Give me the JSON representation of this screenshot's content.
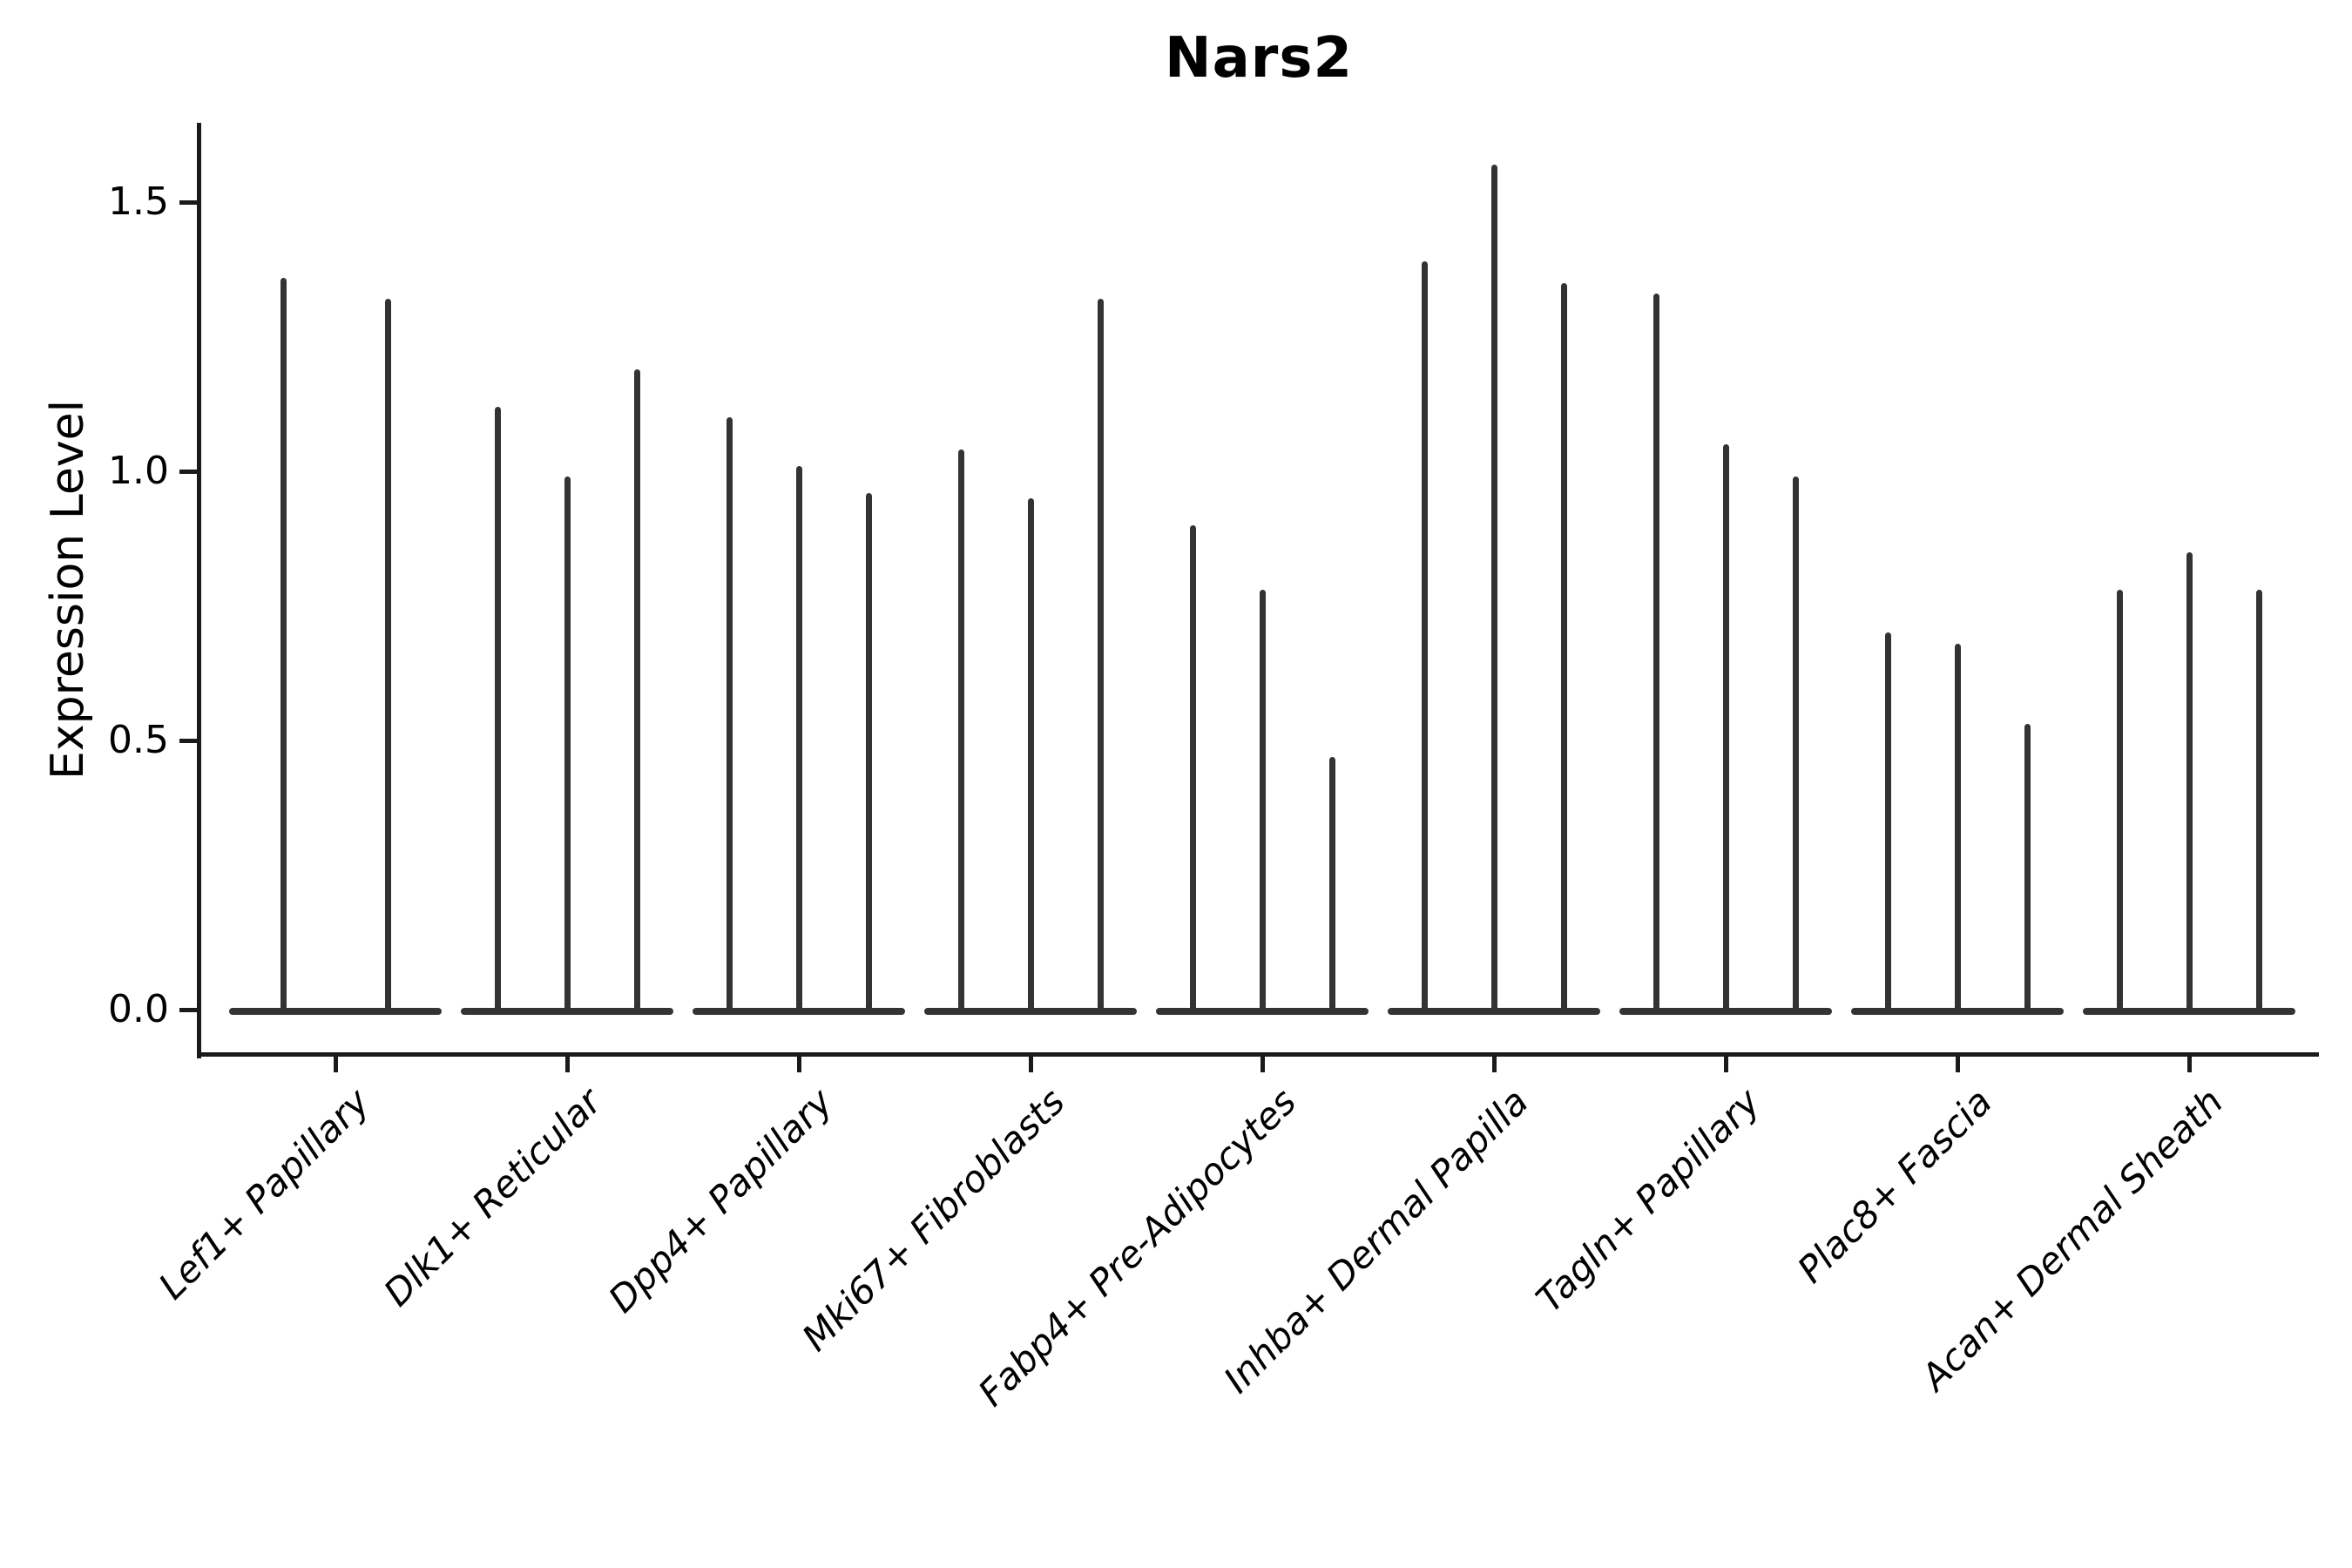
{
  "title": "Nars2",
  "axes": {
    "ylabel": "Expression Level",
    "ytick_labels": [
      "0.0",
      "0.5",
      "1.0",
      "1.5"
    ]
  },
  "chart_data": {
    "type": "violin",
    "title": "Nars2",
    "xlabel": "",
    "ylabel": "Expression Level",
    "ylim": [
      0,
      1.65
    ],
    "ytick_values": [
      0.0,
      0.5,
      1.0,
      1.5
    ],
    "grid": false,
    "legend": false,
    "orientation": "vertical",
    "violin_color": "#333333",
    "axis_color": "#1a1a1a",
    "description": "Thin violin plots of Nars2 expression; each group shows 2-3 narrow violins rising from a flat base at 0, tip value = max expression",
    "categories": [
      "Lef1+ Papillary",
      "Dlk1+ Reticular",
      "Dpp4+ Papillary",
      "Mki67+ Fibroblasts",
      "Fabp4+ Pre-Adipocytes",
      "Inhba+ Dermal Papilla",
      "Tagln+ Papillary",
      "Plac8+ Fascia",
      "Acan+ Dermal Sheath"
    ],
    "groups": [
      {
        "label": "Lef1+ Papillary",
        "violin_max_values": [
          1.36,
          1.32
        ]
      },
      {
        "label": "Dlk1+ Reticular",
        "violin_max_values": [
          1.12,
          0.99,
          1.19
        ]
      },
      {
        "label": "Dpp4+ Papillary",
        "violin_max_values": [
          1.1,
          1.01,
          0.96
        ]
      },
      {
        "label": "Mki67+ Fibroblasts",
        "violin_max_values": [
          1.04,
          0.95,
          1.32
        ]
      },
      {
        "label": "Fabp4+ Pre-Adipocytes",
        "violin_max_values": [
          0.9,
          0.78,
          0.47
        ]
      },
      {
        "label": "Inhba+ Dermal Papilla",
        "violin_max_values": [
          1.39,
          1.57,
          1.35
        ]
      },
      {
        "label": "Tagln+ Papillary",
        "violin_max_values": [
          1.33,
          1.05,
          0.99
        ]
      },
      {
        "label": "Plac8+ Fascia",
        "violin_max_values": [
          0.7,
          0.68,
          0.53
        ]
      },
      {
        "label": "Acan+ Dermal Sheath",
        "violin_max_values": [
          0.78,
          0.85,
          0.78
        ]
      }
    ]
  }
}
